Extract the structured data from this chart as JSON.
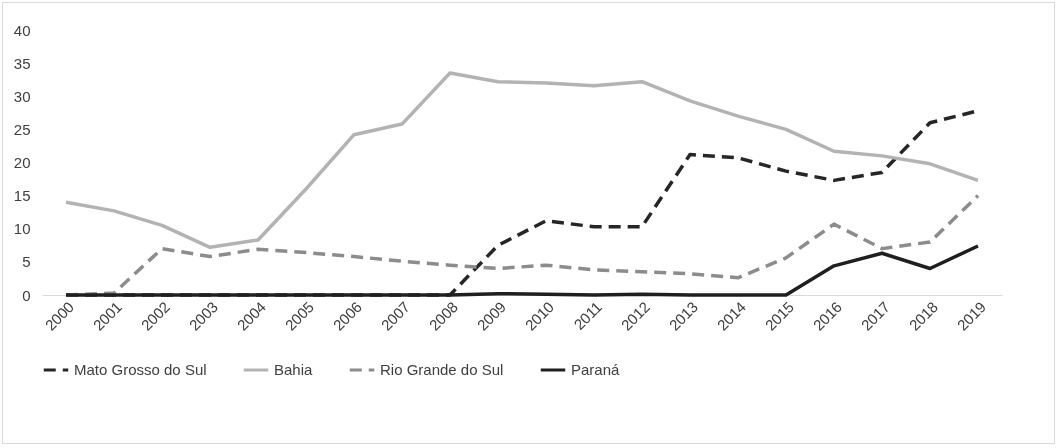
{
  "chart_data": {
    "type": "line",
    "categories": [
      "2000",
      "2001",
      "2002",
      "2003",
      "2004",
      "2005",
      "2006",
      "2007",
      "2008",
      "2009",
      "2010",
      "2011",
      "2012",
      "2013",
      "2014",
      "2015",
      "2016",
      "2017",
      "2018",
      "2019"
    ],
    "series": [
      {
        "name": "Mato Grosso do Sul",
        "color": "#262626",
        "line_style": "dashed",
        "values": [
          0,
          0,
          0,
          0,
          0,
          0,
          0,
          0,
          0,
          7.5,
          11.2,
          10.3,
          10.3,
          21.2,
          20.7,
          18.7,
          17.3,
          18.5,
          26,
          27.8
        ]
      },
      {
        "name": "Bahia",
        "color": "#b3b3b3",
        "line_style": "solid",
        "values": [
          14,
          12.7,
          10.5,
          7.2,
          8.3,
          16,
          24.2,
          25.8,
          33.5,
          32.2,
          32,
          31.6,
          32.2,
          29.3,
          27,
          25,
          21.7,
          21,
          19.8,
          17.3
        ]
      },
      {
        "name": "Rio Grande do Sul",
        "color": "#8c8c8c",
        "line_style": "dashed",
        "values": [
          0,
          0.3,
          7,
          5.8,
          6.9,
          6.4,
          5.8,
          5.1,
          4.5,
          4,
          4.5,
          3.8,
          3.5,
          3.2,
          2.6,
          5.6,
          10.7,
          7,
          8,
          15
        ]
      },
      {
        "name": "Paraná",
        "color": "#1f1f1f",
        "line_style": "solid",
        "values": [
          0,
          0,
          0,
          0,
          0,
          0,
          0,
          0,
          0,
          0.2,
          0.1,
          0,
          0.1,
          0,
          0,
          0,
          4.4,
          6.3,
          4,
          7.4
        ]
      }
    ],
    "ylim": [
      0,
      40
    ],
    "yticks": [
      0,
      5,
      10,
      15,
      20,
      25,
      30,
      35,
      40
    ],
    "grid": false,
    "legend": "bottom",
    "marker": "none"
  }
}
